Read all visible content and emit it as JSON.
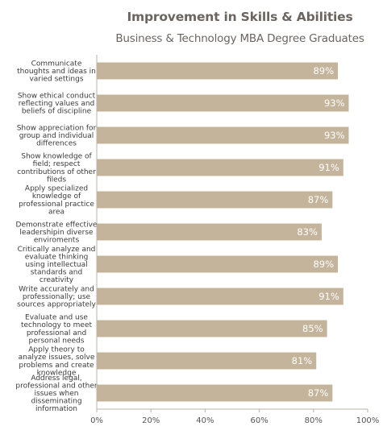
{
  "chart_data": {
    "type": "bar",
    "orientation": "horizontal",
    "title": "Improvement in Skills & Abilities",
    "subtitle": "Business & Technology MBA Degree Graduates",
    "categories": [
      "Communicate thoughts and ideas in varied settings",
      "Show ethical conduct reflecting values and beliefs of discipline",
      "Show appreciation for group and individual differences",
      "Show knowledge of field; respect contributions of other fileds",
      "Apply specialized knowledge of professional practice area",
      "Demonstrate effective leadershipin diverse enviroments",
      "Critically analyze and evaluate thinking using intellectual standards and creativity",
      "Write accurately and professionally; use sources appropriately",
      "Evaluate and use technology to meet professional and personal needs",
      "Apply theory to analyze issues, solve problems and create knowledge",
      "Address legal, professional and other issues when disseminating information"
    ],
    "category_lines": [
      [
        "Communicate",
        "thoughts and ideas in",
        "varied settings"
      ],
      [
        "Show ethical conduct",
        "reflecting values and",
        "beliefs of discipline"
      ],
      [
        "Show appreciation for",
        "group and individual",
        "differences"
      ],
      [
        "Show knowledge of",
        "field; respect",
        "contributions of other",
        "fileds"
      ],
      [
        "Apply specialized",
        "knowledge of",
        "professional practice",
        "area"
      ],
      [
        "Demonstrate effective",
        "leadershipin diverse",
        "enviroments"
      ],
      [
        "Critically analyze and",
        "evaluate thinking",
        "using intellectual",
        "standards and",
        "creativity"
      ],
      [
        "Write accurately and",
        "professionally; use",
        "sources appropriately"
      ],
      [
        "Evaluate and use",
        "technology to meet",
        "professional and",
        "personal needs"
      ],
      [
        "Apply theory to",
        "analyze issues, solve",
        "problems and create",
        "knowledge"
      ],
      [
        "Address legal,",
        "professional and other",
        "issues when",
        "disseminating",
        "information"
      ]
    ],
    "values": [
      89,
      93,
      93,
      91,
      87,
      83,
      89,
      91,
      85,
      81,
      87
    ],
    "value_labels": [
      "89%",
      "93%",
      "93%",
      "91%",
      "87%",
      "83%",
      "89%",
      "91%",
      "85%",
      "81%",
      "87%"
    ],
    "xlim": [
      0,
      100
    ],
    "x_ticks": [
      0,
      20,
      40,
      60,
      80,
      100
    ],
    "x_tick_labels": [
      "0%",
      "20%",
      "40%",
      "60%",
      "80%",
      "100%"
    ],
    "xlabel": "",
    "ylabel": "",
    "grid": false,
    "legend": "none",
    "bar_color": "#c4b49b",
    "axis_color": "#b8b0a4"
  }
}
